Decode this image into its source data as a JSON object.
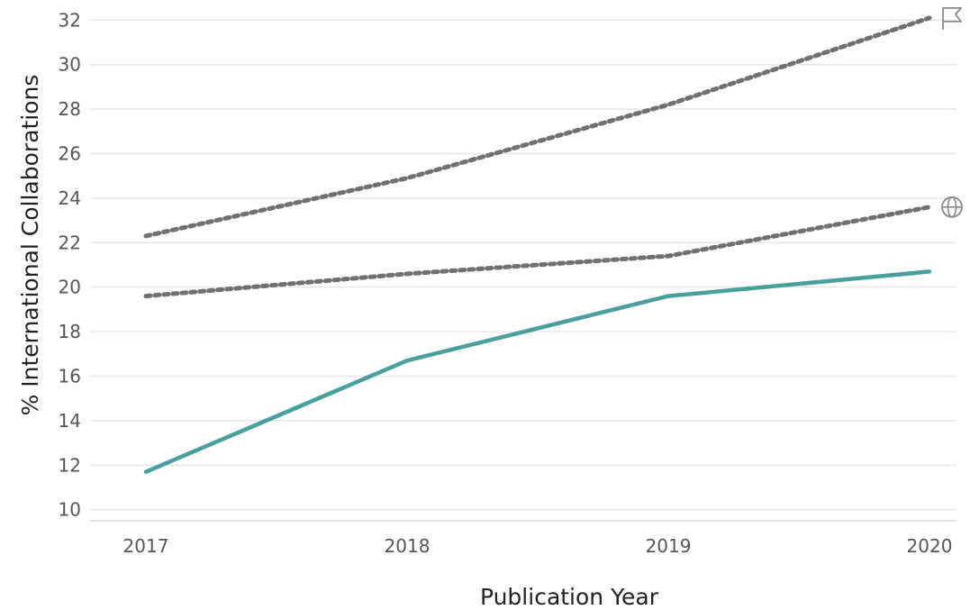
{
  "chart_data": {
    "type": "line",
    "xlabel": "Publication Year",
    "ylabel": "% International Collaborations",
    "x": [
      "2017",
      "2018",
      "2019",
      "2020"
    ],
    "ylim": [
      9.5,
      32.5
    ],
    "yticks": [
      10,
      12,
      14,
      16,
      18,
      20,
      22,
      24,
      26,
      28,
      30,
      32
    ],
    "grid": true,
    "series": [
      {
        "values": [
          22.3,
          24.9,
          28.2,
          32.1
        ],
        "color": "#707070",
        "style": "dotted",
        "end_marker": "flag-icon"
      },
      {
        "values": [
          19.6,
          20.6,
          21.4,
          23.6
        ],
        "color": "#707070",
        "style": "dotted",
        "end_marker": "globe-icon"
      },
      {
        "values": [
          11.7,
          16.7,
          19.6,
          20.7
        ],
        "color": "#47a09e",
        "style": "solid"
      }
    ]
  }
}
